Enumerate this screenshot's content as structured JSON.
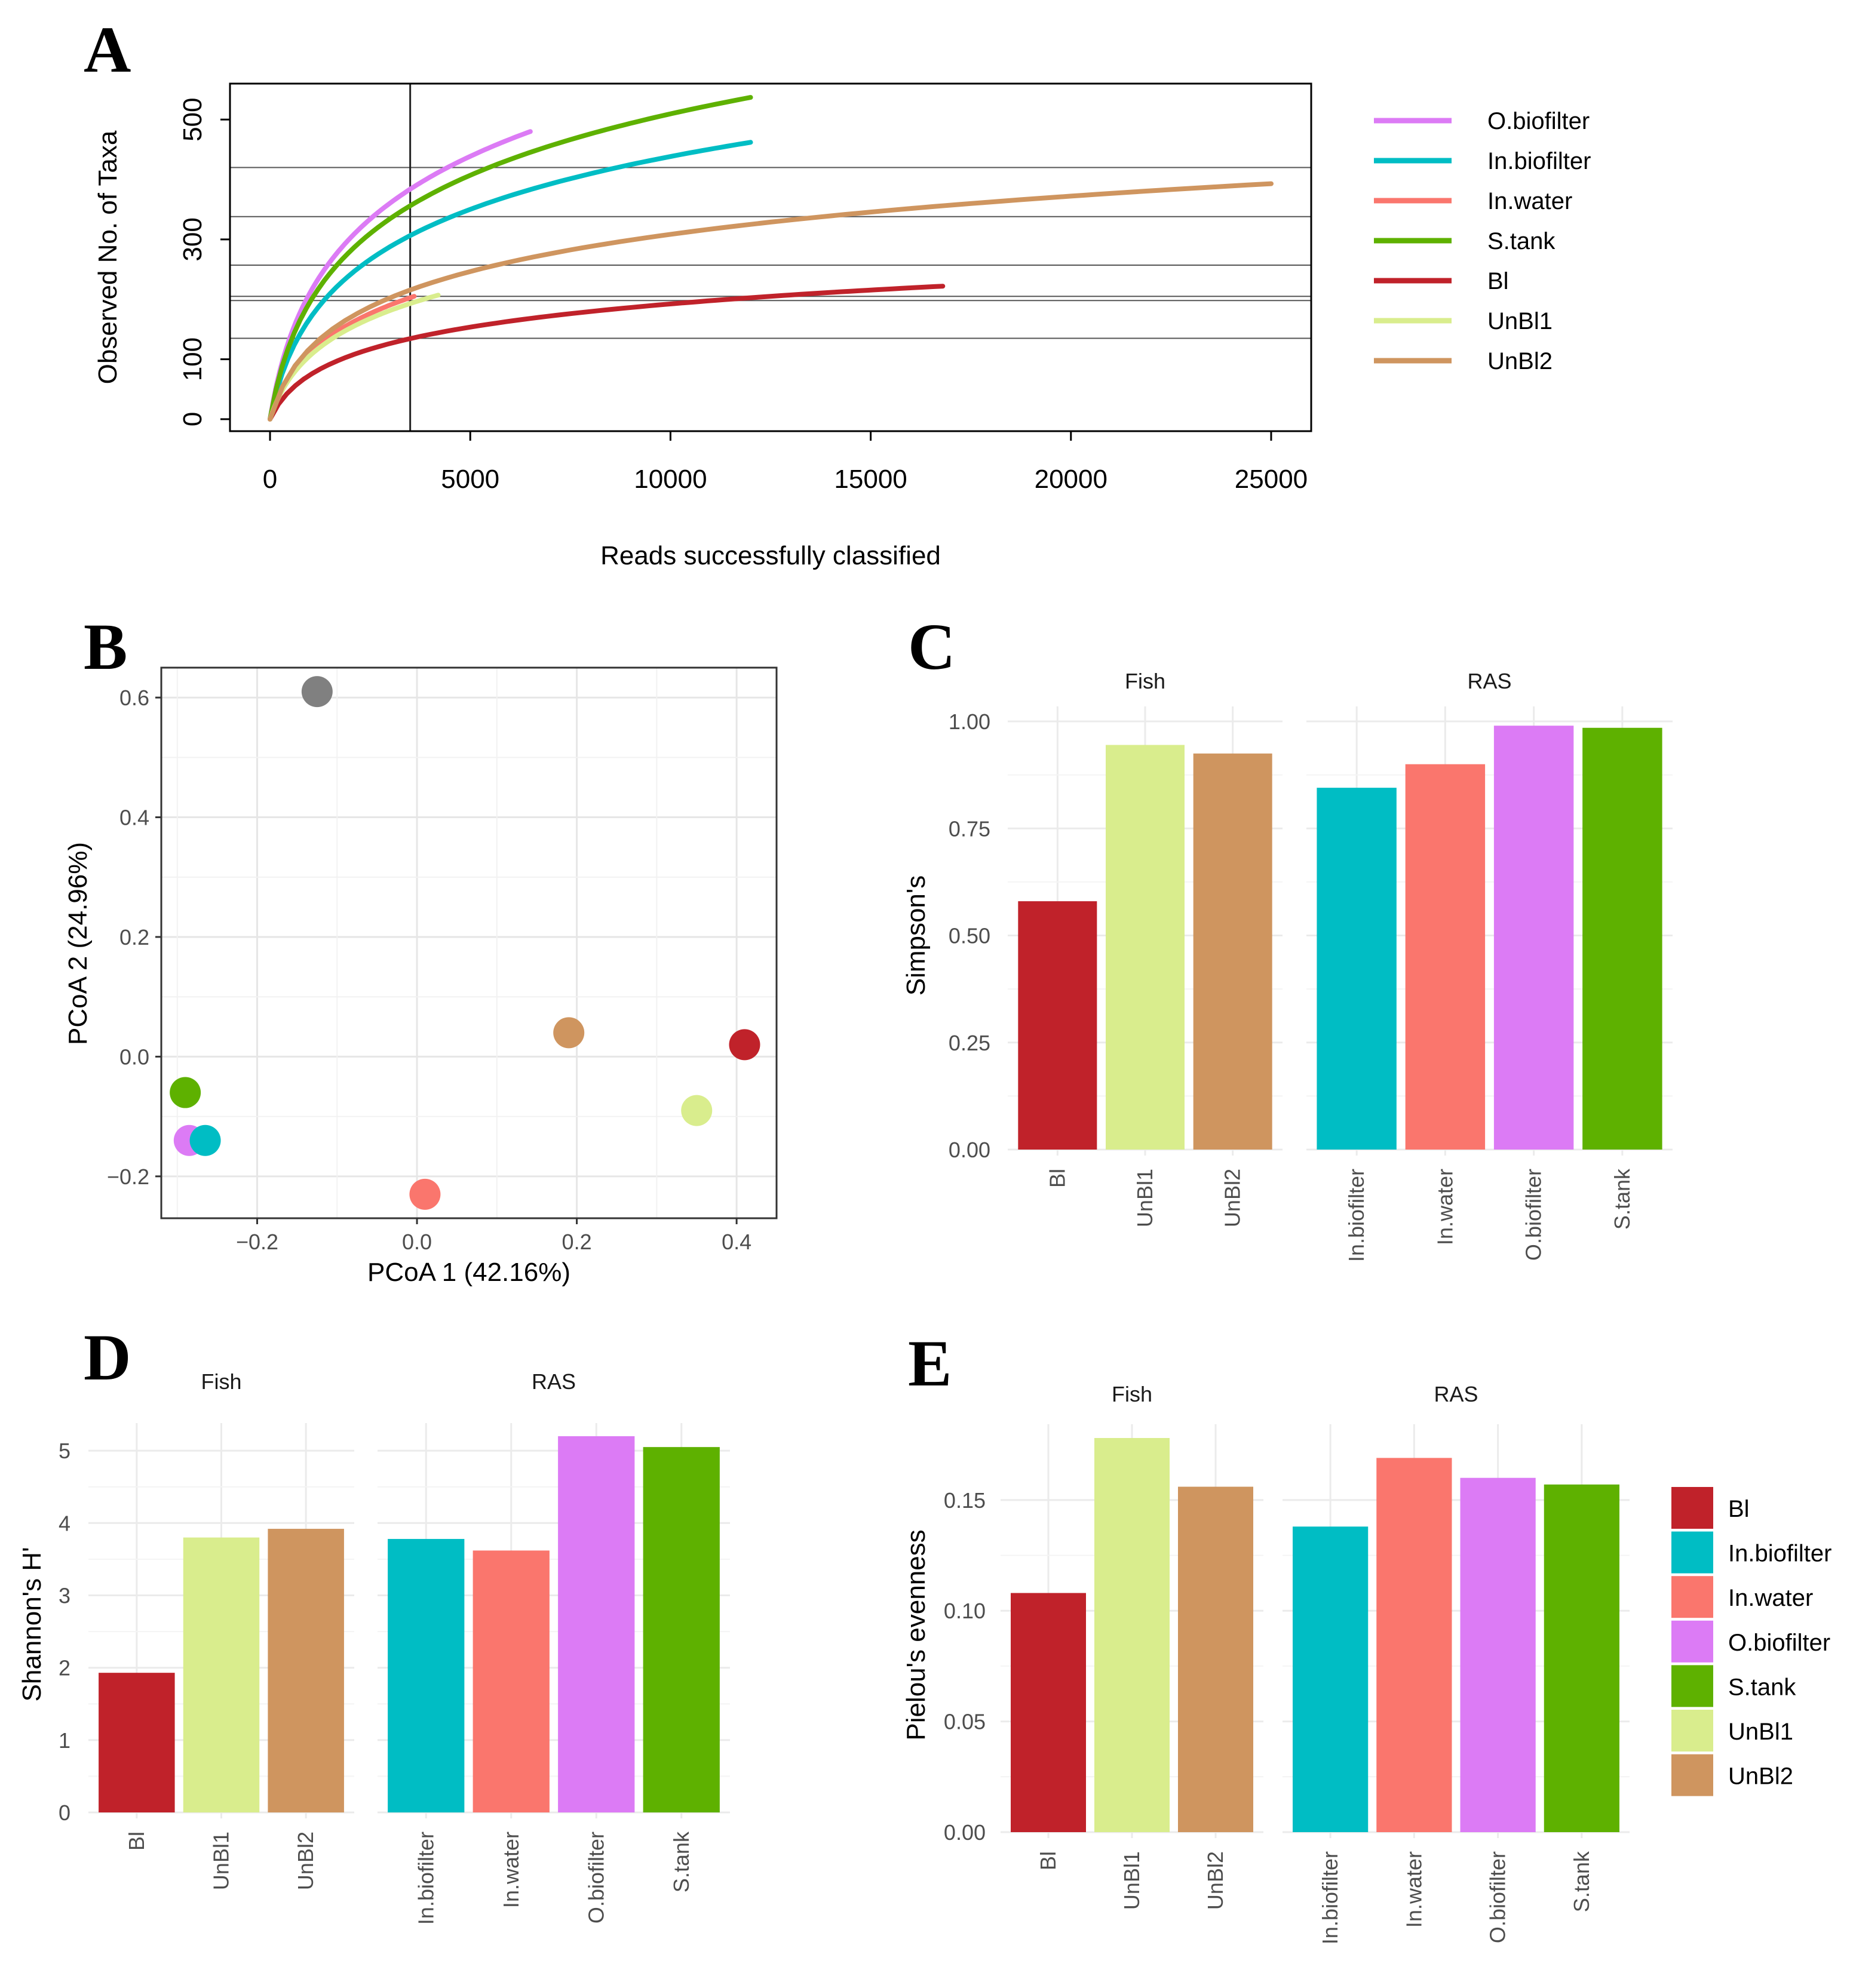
{
  "colors": {
    "Bl": "#c0222a",
    "In.biofilter": "#00bdc4",
    "In.water": "#fa766d",
    "O.biofilter": "#dc7bf5",
    "S.tank": "#5eb100",
    "UnBl1": "#d9ed8d",
    "UnBl2": "#cf955f",
    "pcoa_extra": "#808080"
  },
  "panels": {
    "A": "A",
    "B": "B",
    "C": "C",
    "D": "D",
    "E": "E"
  },
  "chart_data": [
    {
      "panel": "A",
      "type": "line",
      "xlabel": "Reads successfully classified",
      "ylabel": "Observed No. of Taxa",
      "xlim": [
        -1000,
        26000
      ],
      "ylim": [
        -20,
        560
      ],
      "xticks": [
        0,
        5000,
        10000,
        15000,
        20000,
        25000
      ],
      "yticks": [
        0,
        100,
        300,
        500
      ],
      "vline": 3500,
      "hlines": [
        420,
        338,
        257,
        205,
        198,
        135
      ],
      "series": [
        {
          "name": "O.biofilter",
          "max_reads": 6500,
          "max_taxa": 480
        },
        {
          "name": "In.biofilter",
          "max_reads": 12000,
          "max_taxa": 462
        },
        {
          "name": "In.water",
          "max_reads": 3600,
          "max_taxa": 205
        },
        {
          "name": "S.tank",
          "max_reads": 12000,
          "max_taxa": 537
        },
        {
          "name": "Bl",
          "max_reads": 16800,
          "max_taxa": 222
        },
        {
          "name": "UnBl1",
          "max_reads": 4200,
          "max_taxa": 207
        },
        {
          "name": "UnBl2",
          "max_reads": 25000,
          "max_taxa": 393
        }
      ],
      "legend_order": [
        "O.biofilter",
        "In.biofilter",
        "In.water",
        "S.tank",
        "Bl",
        "UnBl1",
        "UnBl2"
      ]
    },
    {
      "panel": "B",
      "type": "scatter",
      "xlabel": "PCoA 1 (42.16%)",
      "ylabel": "PCoA 2 (24.96%)",
      "xlim": [
        -0.32,
        0.45
      ],
      "ylim": [
        -0.27,
        0.65
      ],
      "xticks": [
        -0.2,
        0.0,
        0.2,
        0.4
      ],
      "xtick_labels": [
        "−0.2",
        "0.0",
        "0.2",
        "0.4"
      ],
      "yticks": [
        -0.2,
        0.0,
        0.2,
        0.4,
        0.6
      ],
      "ytick_labels": [
        "−0.2",
        "0.0",
        "0.2",
        "0.4",
        "0.6"
      ],
      "points": [
        {
          "group": "pcoa_extra",
          "x": -0.125,
          "y": 0.61
        },
        {
          "group": "UnBl2",
          "x": 0.19,
          "y": 0.04
        },
        {
          "group": "Bl",
          "x": 0.41,
          "y": 0.02
        },
        {
          "group": "S.tank",
          "x": -0.29,
          "y": -0.06
        },
        {
          "group": "UnBl1",
          "x": 0.35,
          "y": -0.09
        },
        {
          "group": "O.biofilter",
          "x": -0.285,
          "y": -0.14
        },
        {
          "group": "In.biofilter",
          "x": -0.265,
          "y": -0.14
        },
        {
          "group": "In.water",
          "x": 0.01,
          "y": -0.23
        }
      ]
    },
    {
      "panel": "C",
      "type": "bar",
      "ylabel": "Simpson's",
      "ylim": [
        0,
        1.0
      ],
      "yticks": [
        0.0,
        0.25,
        0.5,
        0.75,
        1.0
      ],
      "ytick_labels": [
        "0.00",
        "0.25",
        "0.50",
        "0.75",
        "1.00"
      ],
      "facets": [
        {
          "label": "Fish",
          "categories": [
            "Bl",
            "UnBl1",
            "UnBl2"
          ],
          "values": [
            0.58,
            0.945,
            0.925
          ]
        },
        {
          "label": "RAS",
          "categories": [
            "In.biofilter",
            "In.water",
            "O.biofilter",
            "S.tank"
          ],
          "values": [
            0.845,
            0.9,
            0.99,
            0.985
          ]
        }
      ]
    },
    {
      "panel": "D",
      "type": "bar",
      "ylabel": "Shannon's H'",
      "ylim": [
        0,
        5.2
      ],
      "yticks": [
        0,
        1,
        2,
        3,
        4,
        5
      ],
      "ytick_labels": [
        "0",
        "1",
        "2",
        "3",
        "4",
        "5"
      ],
      "facets": [
        {
          "label": "Fish",
          "categories": [
            "Bl",
            "UnBl1",
            "UnBl2"
          ],
          "values": [
            1.93,
            3.8,
            3.92
          ]
        },
        {
          "label": "RAS",
          "categories": [
            "In.biofilter",
            "In.water",
            "O.biofilter",
            "S.tank"
          ],
          "values": [
            3.78,
            3.62,
            5.2,
            5.05
          ]
        }
      ]
    },
    {
      "panel": "E",
      "type": "bar",
      "ylabel": "Pielou's evenness",
      "ylim": [
        0,
        0.178
      ],
      "yticks": [
        0.0,
        0.05,
        0.1,
        0.15
      ],
      "ytick_labels": [
        "0.00",
        "0.05",
        "0.10",
        "0.15"
      ],
      "facets": [
        {
          "label": "Fish",
          "categories": [
            "Bl",
            "UnBl1",
            "UnBl2"
          ],
          "values": [
            0.108,
            0.178,
            0.156
          ]
        },
        {
          "label": "RAS",
          "categories": [
            "In.biofilter",
            "In.water",
            "O.biofilter",
            "S.tank"
          ],
          "values": [
            0.138,
            0.169,
            0.16,
            0.157
          ]
        }
      ],
      "legend": [
        "Bl",
        "In.biofilter",
        "In.water",
        "O.biofilter",
        "S.tank",
        "UnBl1",
        "UnBl2"
      ]
    }
  ]
}
